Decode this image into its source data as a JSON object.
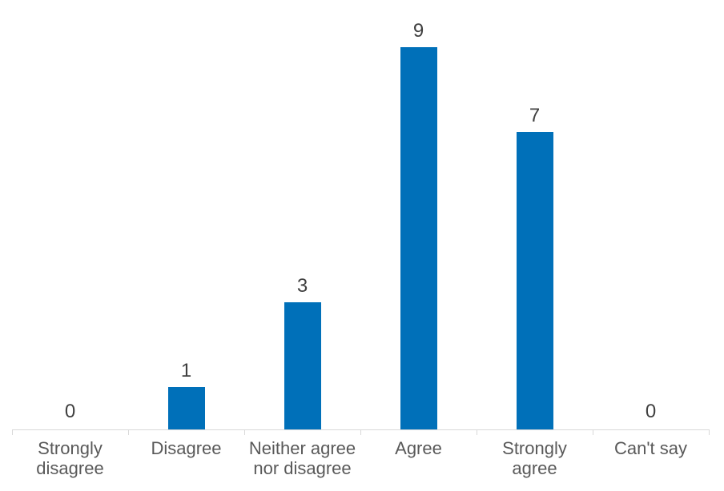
{
  "chart_data": {
    "type": "bar",
    "categories": [
      "Strongly disagree",
      "Disagree",
      "Neither agree nor disagree",
      "Agree",
      "Strongly agree",
      "Can't say"
    ],
    "values": [
      0,
      1,
      3,
      9,
      7,
      0
    ],
    "title": "",
    "xlabel": "",
    "ylabel": "",
    "ylim": [
      0,
      9
    ],
    "grid": false,
    "legend": "none",
    "data_labels": true,
    "bar_color": "#0070b9",
    "axis_color": "#d9d9d9",
    "value_label_color": "#404040",
    "category_label_color": "#595959",
    "background_color": "#ffffff"
  }
}
